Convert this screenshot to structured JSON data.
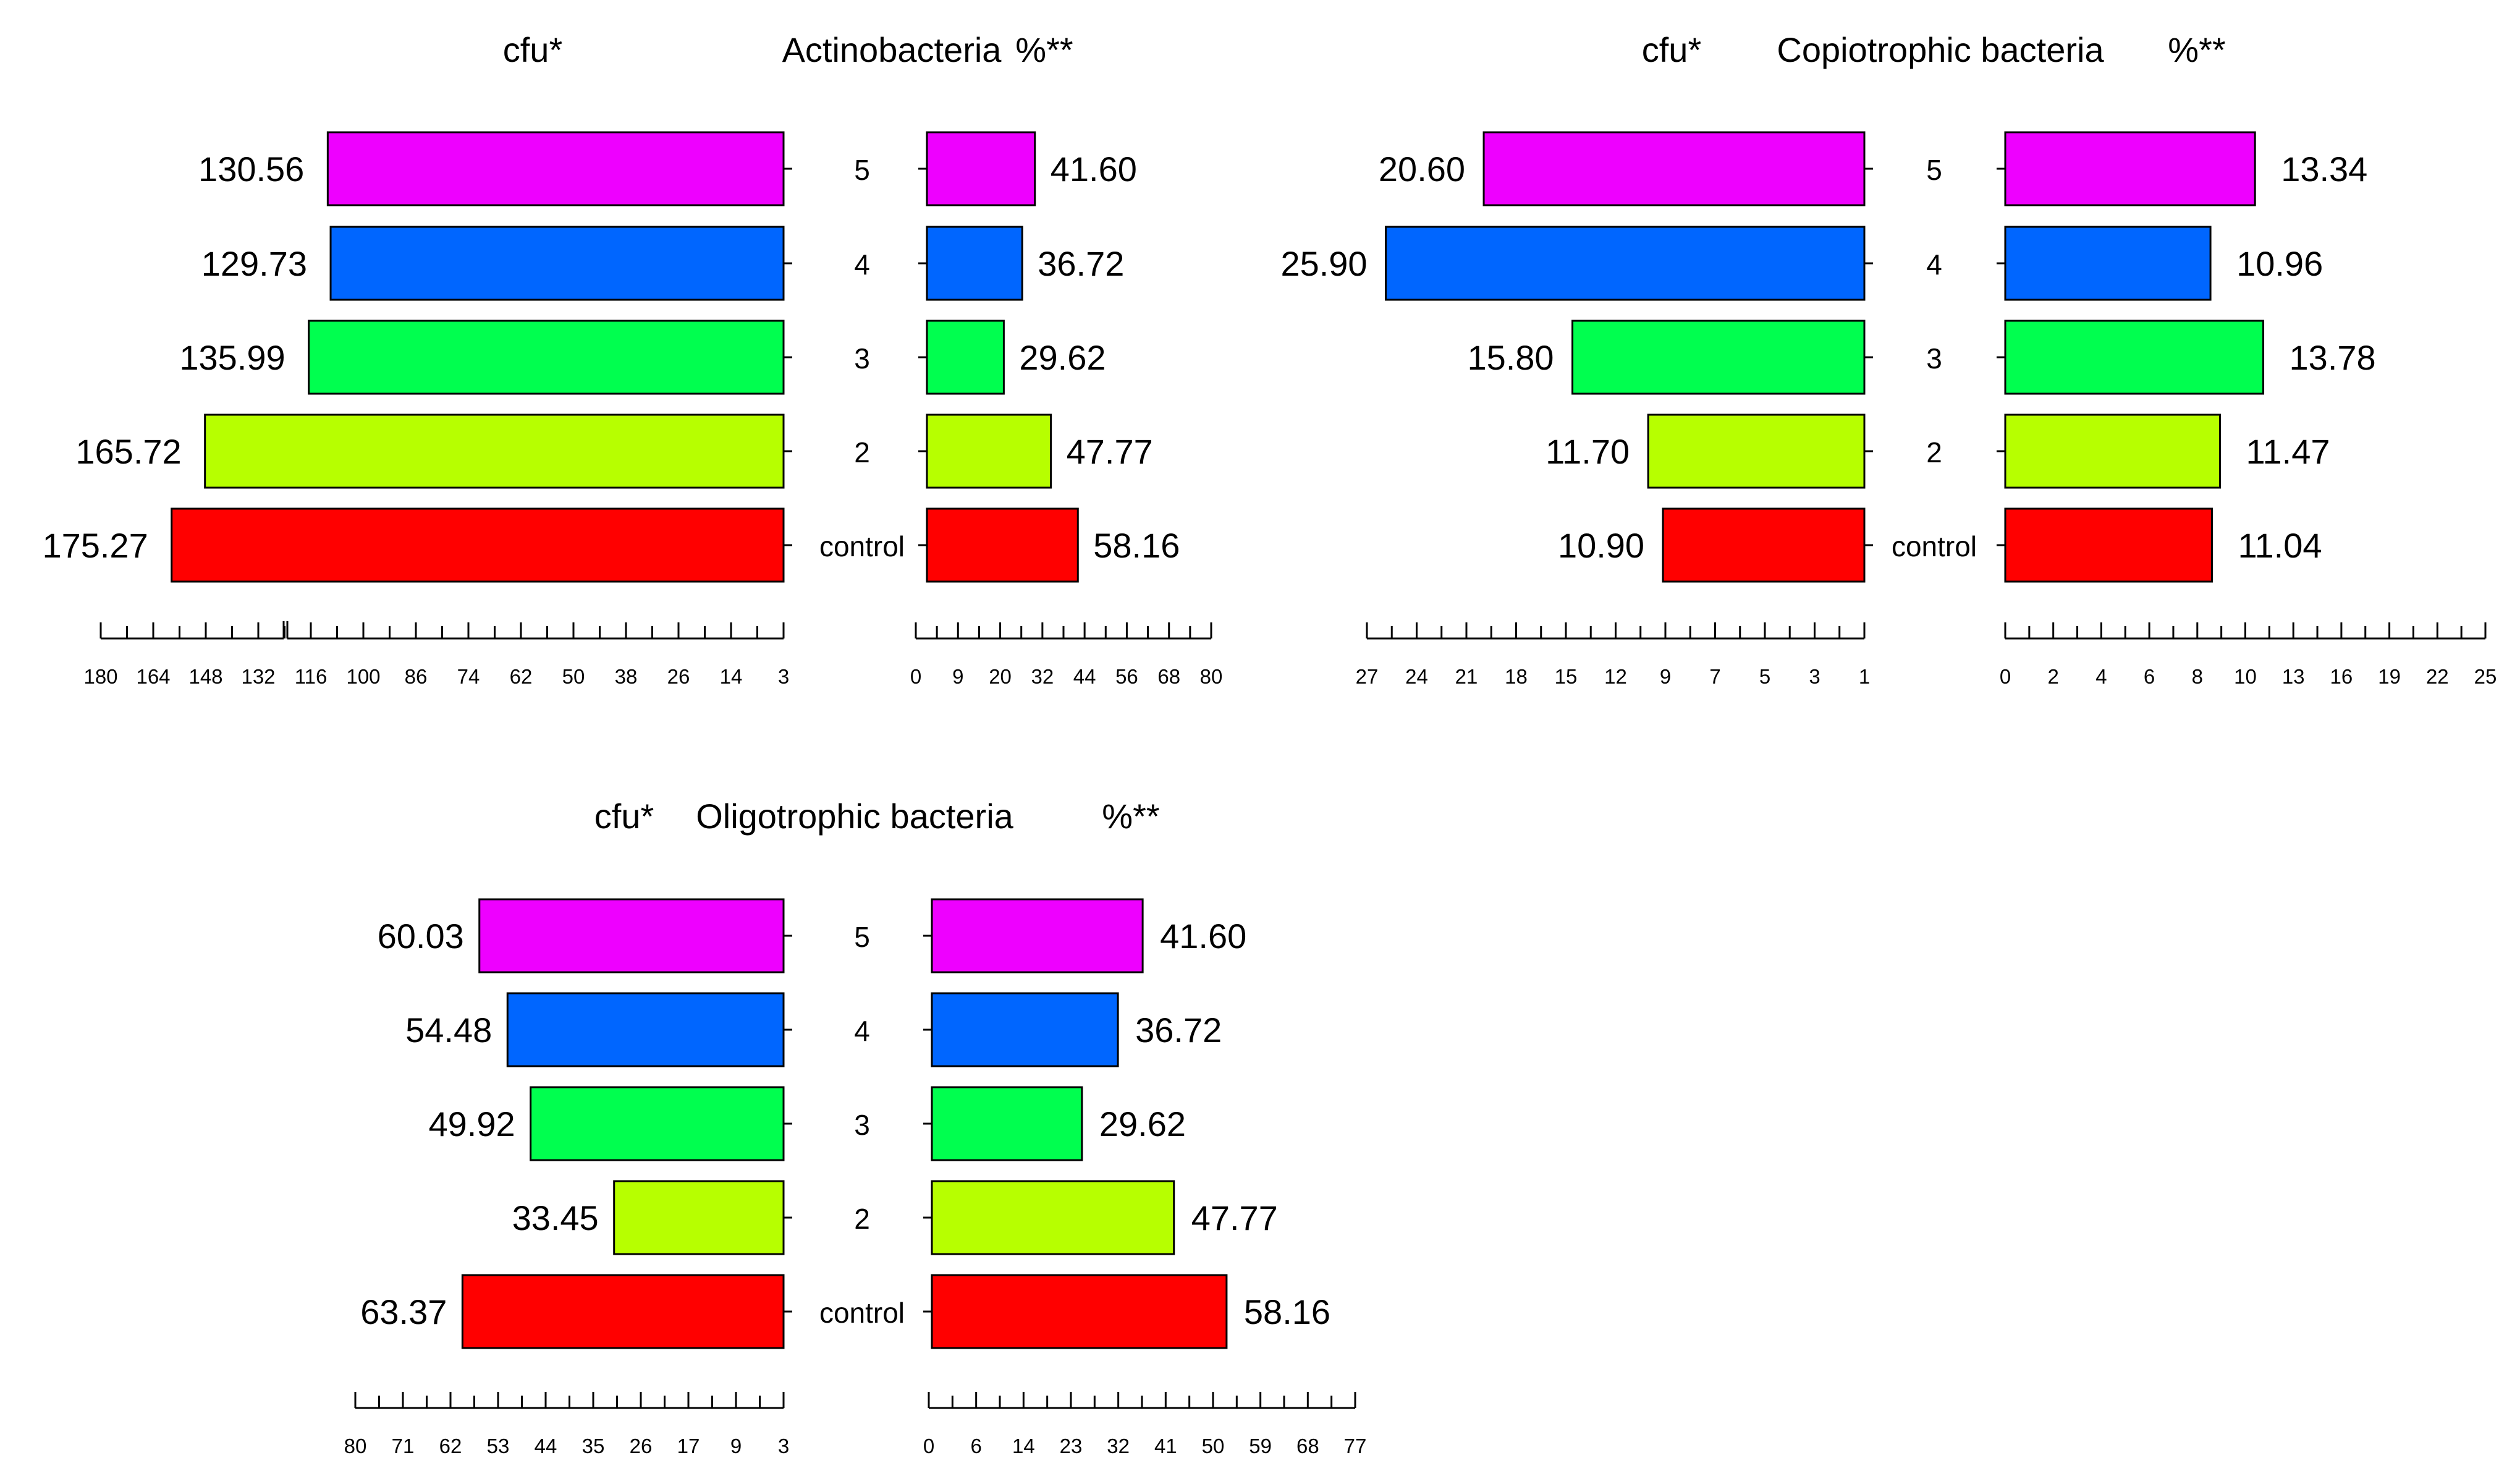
{
  "colors": {
    "control": "#ff0000",
    "2": "#b7ff00",
    "3": "#00ff4f",
    "4": "#0066ff",
    "5": "#ee00ff"
  },
  "chart_data": [
    {
      "type": "bar",
      "title": "Actinobacteria",
      "left_label": "cfu*",
      "right_label": "%**",
      "categories": [
        "5",
        "4",
        "3",
        "2",
        "control"
      ],
      "series": [
        {
          "name": "cfu*",
          "values": [
            130.56,
            129.73,
            135.99,
            165.72,
            175.27
          ],
          "value_labels": [
            "130.56",
            "129.73",
            "135.99",
            "165.72",
            "175.27"
          ]
        },
        {
          "name": "%**",
          "values": [
            41.6,
            36.72,
            29.62,
            47.77,
            58.16
          ],
          "value_labels": [
            "41.60",
            "36.72",
            "29.62",
            "47.77",
            "58.16"
          ]
        }
      ],
      "left_axis": {
        "min": 0,
        "max": 180,
        "ticks": [
          "180",
          "164",
          "148",
          "132",
          "116",
          "100",
          "86",
          "74",
          "62",
          "50",
          "38",
          "26",
          "14",
          "3"
        ]
      },
      "right_axis": {
        "min": 0,
        "max": 80,
        "ticks": [
          "0",
          "9",
          "20",
          "32",
          "44",
          "56",
          "68",
          "80"
        ]
      }
    },
    {
      "type": "bar",
      "title": "Copiotrophic bacteria",
      "left_label": "cfu*",
      "right_label": "%**",
      "categories": [
        "5",
        "4",
        "3",
        "2",
        "control"
      ],
      "series": [
        {
          "name": "cfu*",
          "values": [
            20.6,
            25.9,
            15.8,
            11.7,
            10.9
          ],
          "value_labels": [
            "20.60",
            "25.90",
            "15.80",
            "11.70",
            "10.90"
          ]
        },
        {
          "name": "%**",
          "values": [
            13.34,
            10.96,
            13.78,
            11.47,
            11.04
          ],
          "value_labels": [
            "13.34",
            "10.96",
            "13.78",
            "11.47",
            "11.04"
          ]
        }
      ],
      "left_axis": {
        "min": 0,
        "max": 27,
        "ticks": [
          "27",
          "24",
          "21",
          "18",
          "15",
          "12",
          "9",
          "7",
          "5",
          "3",
          "1"
        ]
      },
      "right_axis": {
        "min": 0,
        "max": 25,
        "ticks": [
          "0",
          "2",
          "4",
          "6",
          "8",
          "10",
          "13",
          "16",
          "19",
          "22",
          "25"
        ]
      }
    },
    {
      "type": "bar",
      "title": "Oligotrophic bacteria",
      "left_label": "cfu*",
      "right_label": "%**",
      "categories": [
        "5",
        "4",
        "3",
        "2",
        "control"
      ],
      "series": [
        {
          "name": "cfu*",
          "values": [
            60.03,
            54.48,
            49.92,
            33.45,
            63.37
          ],
          "value_labels": [
            "60.03",
            "54.48",
            "49.92",
            "33.45",
            "63.37"
          ]
        },
        {
          "name": "%**",
          "values": [
            41.6,
            36.72,
            29.62,
            47.77,
            58.16
          ],
          "value_labels": [
            "41.60",
            "36.72",
            "29.62",
            "47.77",
            "58.16"
          ]
        }
      ],
      "left_axis": {
        "min": 0,
        "max": 80,
        "ticks": [
          "80",
          "71",
          "62",
          "53",
          "44",
          "35",
          "26",
          "17",
          "9",
          "3"
        ]
      },
      "right_axis": {
        "min": 0,
        "max": 77,
        "ticks": [
          "0",
          "6",
          "14",
          "23",
          "32",
          "41",
          "50",
          "59",
          "68",
          "77"
        ]
      }
    }
  ]
}
